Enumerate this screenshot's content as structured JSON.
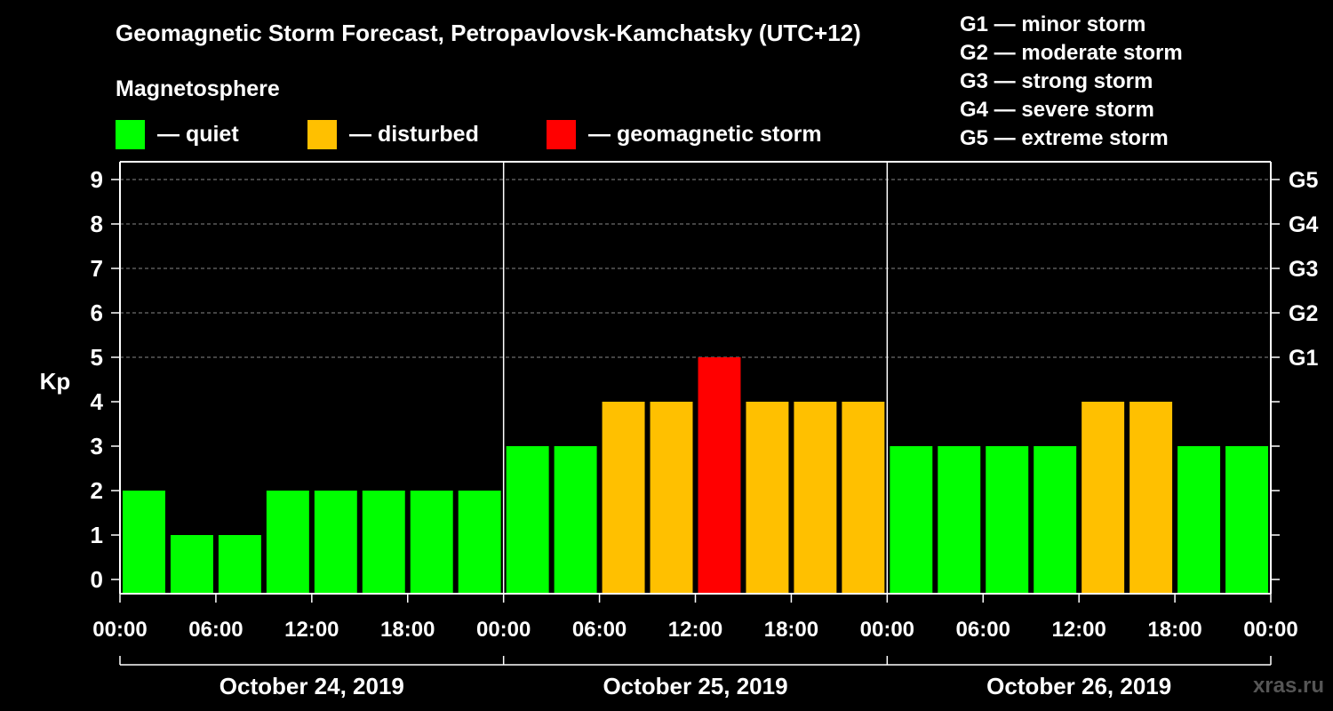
{
  "chart_data": {
    "type": "bar",
    "title": "Geomagnetic Storm Forecast, Petropavlovsk-Kamchatsky (UTC+12)",
    "subtitle": "Magnetosphere",
    "ylabel": "Kp",
    "ylim": [
      0,
      9
    ],
    "yticks": [
      "0",
      "1",
      "2",
      "3",
      "4",
      "5",
      "6",
      "7",
      "8",
      "9"
    ],
    "grid": true,
    "xticks": [
      "00:00",
      "06:00",
      "12:00",
      "18:00",
      "00:00",
      "06:00",
      "12:00",
      "18:00",
      "00:00",
      "06:00",
      "12:00",
      "18:00",
      "00:00"
    ],
    "days": [
      "October 24, 2019",
      "October 25, 2019",
      "October 26, 2019"
    ],
    "values": [
      2,
      1,
      1,
      2,
      2,
      2,
      2,
      2,
      3,
      3,
      4,
      4,
      5,
      4,
      4,
      4,
      3,
      3,
      3,
      3,
      4,
      4,
      3,
      3
    ],
    "storm_levels": [
      {
        "label": "G1",
        "kp": 5
      },
      {
        "label": "G2",
        "kp": 6
      },
      {
        "label": "G3",
        "kp": 7
      },
      {
        "label": "G4",
        "kp": 8
      },
      {
        "label": "G5",
        "kp": 9
      }
    ],
    "legend": [
      {
        "label": "— quiet",
        "color": "#00ff00"
      },
      {
        "label": "— disturbed",
        "color": "#ffc000"
      },
      {
        "label": "— geomagnetic storm",
        "color": "#ff0000"
      }
    ],
    "storm_scale": [
      "G1 — minor storm",
      "G2 — moderate storm",
      "G3 — strong storm",
      "G4 — severe storm",
      "G5 — extreme storm"
    ],
    "watermark": "xras.ru"
  }
}
